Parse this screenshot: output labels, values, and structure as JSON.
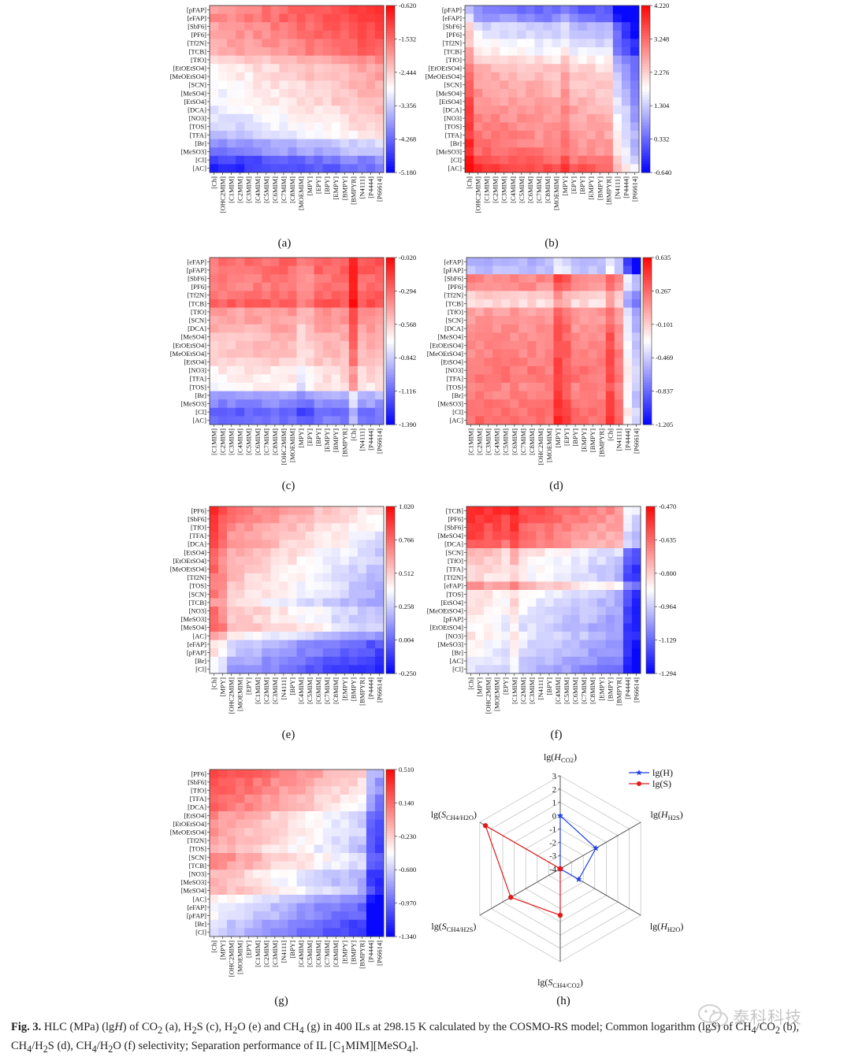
{
  "chart_data": [
    {
      "type": "heatmap",
      "panel": "(a)",
      "colormap": "bwr",
      "rows": [
        "[pFAP]",
        "[eFAP]",
        "[SbF6]",
        "[PF6]",
        "[Tf2N]",
        "[TCB]",
        "[TfO]",
        "[EtOEtSO4]",
        "[MeOEtSO4]",
        "[SCN]",
        "[MeSO4]",
        "[EtSO4]",
        "[DCA]",
        "[NO3]",
        "[TOS]",
        "[TFA]",
        "[Br]",
        "[MeSO3]",
        "[Cl]",
        "[AC]"
      ],
      "cols": [
        "[Ch]",
        "[OHC2MIM]",
        "[C1MIM]",
        "[C2MIM]",
        "[C3MIM]",
        "[C4MIM]",
        "[C5MIM]",
        "[C6MIM]",
        "[C7MIM]",
        "[C8MIM]",
        "[MOEMIM]",
        "[MPY]",
        "[EPY]",
        "[BPY]",
        "[EMPY]",
        "[BMPY]",
        "[BMPYR]",
        "[N4111]",
        "[P4444]",
        "[P66614]"
      ],
      "colorbar_ticks": [
        "-0.620",
        "-1.532",
        "-2.444",
        "-3.356",
        "-4.268",
        "-5.180"
      ],
      "row_profile": [
        0.62,
        0.64,
        0.57,
        0.55,
        0.51,
        0.48,
        0.3,
        0.22,
        0.2,
        0.16,
        0.14,
        0.12,
        0.08,
        0.03,
        -0.02,
        -0.1,
        -0.3,
        -0.38,
        -0.62,
        -0.72
      ],
      "col_gradient": 0.18,
      "col_offsets": {}
    },
    {
      "type": "heatmap",
      "panel": "(b)",
      "colormap": "bwr",
      "rows": [
        "[pFAP]",
        "[eFAP]",
        "[SbF6]",
        "[PF6]",
        "[Tf2N]",
        "[TCB]",
        "[TfO]",
        "[EtOEtSO4]",
        "[MeOEtSO4]",
        "[SCN]",
        "[MeSO4]",
        "[EtSO4]",
        "[DCA]",
        "[NO3]",
        "[TOS]",
        "[TFA]",
        "[Br]",
        "[MeSO3]",
        "[Cl]",
        "[AC]"
      ],
      "cols": [
        "[Ch]",
        "[OHC2MIM]",
        "[C1MIM]",
        "[C2MIM]",
        "[C3MIM]",
        "[C4MIM]",
        "[C5MIM]",
        "[C6MIM]",
        "[C7MIM]",
        "[C8MIM]",
        "[MOEMIM]",
        "[MPY]",
        "[EPY]",
        "[BPY]",
        "[EMPY]",
        "[BMPY]",
        "[BMPYR]",
        "[N4111]",
        "[P4444]",
        "[P66614]"
      ],
      "colorbar_ticks": [
        "4.220",
        "3.248",
        "2.276",
        "1.304",
        "0.332",
        "-0.640"
      ],
      "row_profile": [
        -0.6,
        -0.5,
        -0.25,
        -0.18,
        -0.1,
        -0.04,
        0.12,
        0.22,
        0.25,
        0.3,
        0.32,
        0.34,
        0.38,
        0.4,
        0.42,
        0.45,
        0.48,
        0.52,
        0.6,
        0.72
      ],
      "col_gradient": -0.12,
      "col_offsets": {
        "[Ch]": 0.25,
        "[MPY]": 0.12,
        "[N4111]": -0.35,
        "[P4444]": -0.5,
        "[P66614]": -0.65
      }
    },
    {
      "type": "heatmap",
      "panel": "(c)",
      "colormap": "bwr",
      "rows": [
        "[eFAP]",
        "[pFAP]",
        "[SbF6]",
        "[PF6]",
        "[Tf2N]",
        "[TCB]",
        "[TfO]",
        "[SCN]",
        "[DCA]",
        "[MeSO4]",
        "[EtOEtSO4]",
        "[MeOEtSO4]",
        "[EtSO4]",
        "[NO3]",
        "[TFA]",
        "[TOS]",
        "[Br]",
        "[MeSO3]",
        "[Cl]",
        "[AC]"
      ],
      "cols": [
        "[C1MIM]",
        "[C2MIM]",
        "[C3MIM]",
        "[C4MIM]",
        "[C5MIM]",
        "[C6MIM]",
        "[C7MIM]",
        "[C8MIM]",
        "[OHC2MIM]",
        "[MOEMIM]",
        "[MPY]",
        "[EPY]",
        "[BPY]",
        "[EMPY]",
        "[BMPY]",
        "[BMPYR]",
        "[Ch]",
        "[N4111]",
        "[P4444]",
        "[P66614]"
      ],
      "colorbar_ticks": [
        "-0.020",
        "-0.294",
        "-0.568",
        "-0.842",
        "-1.116",
        "-1.390"
      ],
      "row_profile": [
        0.62,
        0.6,
        0.57,
        0.55,
        0.6,
        0.68,
        0.42,
        0.4,
        0.36,
        0.3,
        0.28,
        0.26,
        0.22,
        0.12,
        0.1,
        0.05,
        -0.35,
        -0.45,
        -0.6,
        -0.55
      ],
      "col_gradient": 0.05,
      "col_offsets": {
        "[Ch]": 0.3,
        "[MPY]": -0.15,
        "[EPY]": -0.1
      }
    },
    {
      "type": "heatmap",
      "panel": "(d)",
      "colormap": "bwr",
      "rows": [
        "[eFAP]",
        "[pFAP]",
        "[SbF6]",
        "[PF6]",
        "[Tf2N]",
        "[TCB]",
        "[TfO]",
        "[SCN]",
        "[DCA]",
        "[MeSO4]",
        "[EtOEtSO4]",
        "[MeOEtSO4]",
        "[EtSO4]",
        "[NO3]",
        "[TFA]",
        "[TOS]",
        "[Br]",
        "[MeSO3]",
        "[Cl]",
        "[AC]"
      ],
      "cols": [
        "[C1MIM]",
        "[C2MIM]",
        "[C3MIM]",
        "[C4MIM]",
        "[C5MIM]",
        "[C6MIM]",
        "[C7MIM]",
        "[C8MIM]",
        "[OHC2MIM]",
        "[MOEMIM]",
        "[MPY]",
        "[EPY]",
        "[BPY]",
        "[EMPY]",
        "[BMPY]",
        "[BMPYR]",
        "[Ch]",
        "[N4111]",
        "[P4444]",
        "[P66614]"
      ],
      "colorbar_ticks": [
        "0.635",
        "0.267",
        "-0.101",
        "-0.469",
        "-0.837",
        "-1.205"
      ],
      "row_profile": [
        -0.3,
        -0.25,
        0.5,
        0.45,
        0.2,
        0.15,
        0.4,
        0.42,
        0.45,
        0.48,
        0.5,
        0.5,
        0.52,
        0.55,
        0.55,
        0.5,
        0.52,
        0.55,
        0.58,
        0.6
      ],
      "col_gradient": 0.0,
      "col_offsets": {
        "[MPY]": 0.25,
        "[EPY]": 0.15,
        "[Ch]": 0.2,
        "[P4444]": -0.5,
        "[P66614]": -0.75
      }
    },
    {
      "type": "heatmap",
      "panel": "(e)",
      "colormap": "bwr",
      "rows": [
        "[PF6]",
        "[SbF6]",
        "[TfO]",
        "[TFA]",
        "[DCA]",
        "[EtSO4]",
        "[EtOEtSO4]",
        "[MeOEtSO4]",
        "[Tf2N]",
        "[TOS]",
        "[SCN]",
        "[TCB]",
        "[NO3]",
        "[MeSO3]",
        "[MeSO4]",
        "[AC]",
        "[eFAP]",
        "[pFAP]",
        "[Br]",
        "[Cl]"
      ],
      "cols": [
        "[Ch]",
        "[MPY]",
        "[OHC2MIM]",
        "[MOEMIM]",
        "[EPY]",
        "[C1MIM]",
        "[C2MIM]",
        "[C3MIM]",
        "[N4111]",
        "[BPY]",
        "[C4MIM]",
        "[C5MIM]",
        "[C6MIM]",
        "[C7MIM]",
        "[C8MIM]",
        "[EMPY]",
        "[BMPY]",
        "[BMPYR]",
        "[P4444]",
        "[P66614]"
      ],
      "colorbar_ticks": [
        "1.020",
        "0.766",
        "0.512",
        "0.258",
        "0.004",
        "-0.250"
      ],
      "row_profile": [
        0.35,
        0.3,
        0.25,
        0.2,
        0.18,
        0.1,
        0.08,
        0.06,
        0.02,
        0.0,
        -0.02,
        -0.1,
        0.05,
        0.02,
        0.1,
        -0.15,
        -0.4,
        -0.45,
        -0.55,
        -0.6
      ],
      "col_gradient": -0.3,
      "col_offsets": {
        "[Ch]": 0.25,
        "[MPY]": 0.15
      }
    },
    {
      "type": "heatmap",
      "panel": "(f)",
      "colormap": "bwr",
      "rows": [
        "[TCB]",
        "[PF6]",
        "[SbF6]",
        "[MeSO4]",
        "[DCA]",
        "[SCN]",
        "[TfO]",
        "[TFA]",
        "[Tf2N]",
        "[eFAP]",
        "[TOS]",
        "[EtSO4]",
        "[MeOEtSO4]",
        "[pFAP]",
        "[EtOEtSO4]",
        "[NO3]",
        "[MeSO3]",
        "[Br]",
        "[AC]",
        "[Cl]"
      ],
      "cols": [
        "[Ch]",
        "[MPY]",
        "[OHC2MIM]",
        "[MOEMIM]",
        "[EPY]",
        "[C1MIM]",
        "[C2MIM]",
        "[C3MIM]",
        "[N4111]",
        "[BPY]",
        "[C4MIM]",
        "[C5MIM]",
        "[C6MIM]",
        "[C7MIM]",
        "[C8MIM]",
        "[EMPY]",
        "[BMPY]",
        "[BMPYR]",
        "[P4444]",
        "[P66614]"
      ],
      "colorbar_ticks": [
        "-0.470",
        "-0.635",
        "-0.800",
        "-0.964",
        "-1.129",
        "-1.294"
      ],
      "row_profile": [
        0.65,
        0.6,
        0.55,
        0.5,
        0.45,
        0.05,
        0.0,
        -0.05,
        -0.08,
        0.2,
        -0.1,
        -0.12,
        -0.15,
        -0.18,
        -0.2,
        -0.15,
        -0.22,
        -0.25,
        -0.3,
        -0.35
      ],
      "col_gradient": -0.25,
      "col_offsets": {
        "[C1MIM]": 0.15,
        "[P4444]": -0.4,
        "[P66614]": -0.5
      }
    },
    {
      "type": "heatmap",
      "panel": "(g)",
      "colormap": "bwr",
      "rows": [
        "[PF6]",
        "[SbF6]",
        "[TfO]",
        "[TFA]",
        "[DCA]",
        "[EtSO4]",
        "[EtOEtSO4]",
        "[MeOEtSO4]",
        "[Tf2N]",
        "[TOS]",
        "[SCN]",
        "[TCB]",
        "[NO3]",
        "[MeSO3]",
        "[MeSO4]",
        "[AC]",
        "[eFAP]",
        "[pFAP]",
        "[Br]",
        "[Cl]"
      ],
      "cols": [
        "[Ch]",
        "[MPY]",
        "[OHC2MIM]",
        "[MOEMIM]",
        "[EPY]",
        "[C1MIM]",
        "[C2MIM]",
        "[C3MIM]",
        "[N4111]",
        "[BPY]",
        "[C4MIM]",
        "[C5MIM]",
        "[C6MIM]",
        "[C7MIM]",
        "[C8MIM]",
        "[EMPY]",
        "[BMPY]",
        "[BMPYR]",
        "[P4444]",
        "[P66614]"
      ],
      "colorbar_ticks": [
        "0.510",
        "0.140",
        "-0.230",
        "-0.600",
        "-0.970",
        "-1.340"
      ],
      "row_profile": [
        0.45,
        0.4,
        0.35,
        0.3,
        0.28,
        0.12,
        0.1,
        0.08,
        0.05,
        0.02,
        0.15,
        0.1,
        -0.05,
        -0.08,
        -0.02,
        -0.25,
        -0.35,
        -0.38,
        -0.5,
        -0.55
      ],
      "col_gradient": -0.35,
      "col_offsets": {
        "[P4444]": -0.4,
        "[P66614]": -0.45
      }
    },
    {
      "type": "radar",
      "panel": "(h)",
      "axes": [
        "lg(H_CO2)",
        "lg(H_H2S)",
        "lg(H_H2O)",
        "lg(S_CH4/CO2)",
        "lg(S_CH4/H2S)",
        "lg(S_CH4/H2O)"
      ],
      "axis_labels": [
        {
          "pre": "lg(",
          "sym": "H",
          "sub": "CO2",
          "post": ")"
        },
        {
          "pre": "lg(",
          "sym": "H",
          "sub": "H2S",
          "post": ")"
        },
        {
          "pre": "lg(",
          "sym": "H",
          "sub": "H2O",
          "post": ")"
        },
        {
          "pre": "lg(",
          "sym": "S",
          "sub": "CH4/CO2",
          "post": ")"
        },
        {
          "pre": "lg(",
          "sym": "S",
          "sub": "CH4/H2S",
          "post": ")"
        },
        {
          "pre": "lg(",
          "sym": "S",
          "sub": "CH4/H2O",
          "post": ")"
        }
      ],
      "rlim": [
        -4,
        3
      ],
      "ticks": [
        3,
        2,
        1,
        0,
        -1,
        -2,
        -3,
        -4
      ],
      "series": [
        {
          "name": "lg(H)",
          "marker": "star",
          "color": "#1f3fe6",
          "values": [
            0.0,
            -0.9,
            -2.4,
            -4,
            -4,
            -4
          ]
        },
        {
          "name": "lg(S)",
          "marker": "circle",
          "color": "#e01b1b",
          "values": [
            -4,
            -4,
            -4,
            -0.5,
            0.3,
            2.5
          ]
        }
      ],
      "legend_position": "top-right"
    }
  ],
  "panel_labels": [
    "(a)",
    "(b)",
    "(c)",
    "(d)",
    "(e)",
    "(f)",
    "(g)",
    "(h)"
  ],
  "caption": {
    "fig": "Fig. 3.",
    "html": " HLC (MPa) (lg<i>H</i>) of CO<sub>2</sub> (a), H<sub>2</sub>S (c), H<sub>2</sub>O (e) and CH<sub>4</sub> (g) in 400 ILs at 298.15 K calculated by the COSMO-RS model; Common logarithm (lg<i>S</i>) of CH<sub>4</sub>/CO<sub>2</sub> (b), CH<sub>4</sub>/H<sub>2</sub>S (d), CH<sub>4</sub>/H<sub>2</sub>O (f) selectivity; Separation performance of IL [C<sub>1</sub>MIM][MeSO<sub>4</sub>]."
  },
  "watermark": {
    "text": "泰科科技",
    "icon": "wechat-icon"
  }
}
